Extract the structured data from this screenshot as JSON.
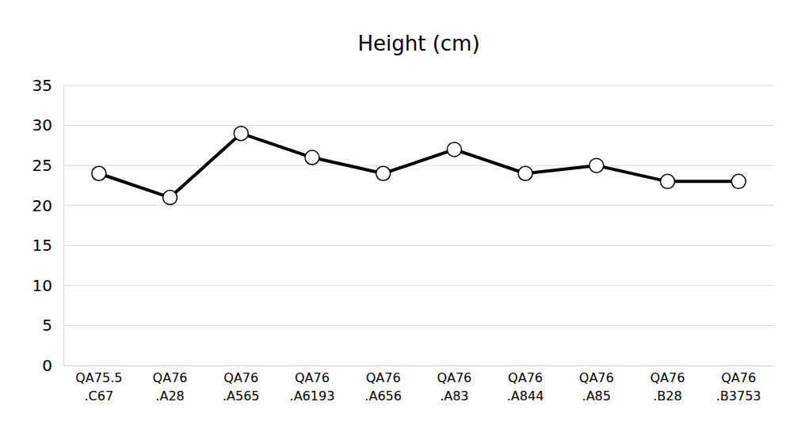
{
  "chart_data": {
    "type": "line",
    "title": "Height (cm)",
    "categories": [
      "QA75.5\n.C67",
      "QA76\n.A28",
      "QA76\n.A565",
      "QA76\n.A6193",
      "QA76\n.A656",
      "QA76\n.A83",
      "QA76\n.A844",
      "QA76\n.A85",
      "QA76\n.B28",
      "QA76\n.B3753"
    ],
    "values": [
      24,
      21,
      29,
      26,
      24,
      27,
      24,
      25,
      23,
      23
    ],
    "color": "#000000",
    "marker": "circle",
    "ylim": [
      0,
      35
    ],
    "yticks": [
      0,
      5,
      10,
      15,
      20,
      25,
      30,
      35
    ],
    "grid": true
  }
}
